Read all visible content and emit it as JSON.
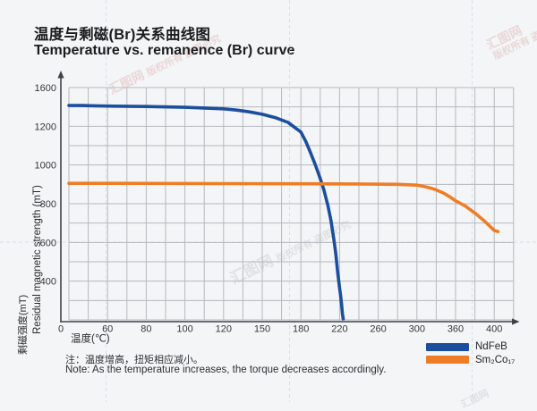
{
  "title": {
    "zh": "温度与剩磁(Br)关系曲线图",
    "en": "Temperature vs. remanence (Br) curve"
  },
  "notes": {
    "zh": "注：温度增高，扭矩相应减小。",
    "en": "Note: As the temperature increases, the torque decreases accordingly."
  },
  "watermark": {
    "brand": "汇图网",
    "notice": "版权所有 盗图必究"
  },
  "chart_data": {
    "type": "line",
    "title": "温度与剩磁(Br)关系曲线图 / Temperature vs. remanence (Br) curve",
    "xlabel": "温度(℃)",
    "ylabel_zh": "剩磁强度(mT)",
    "ylabel_en": "Residual magnetic strength (mT)",
    "x_ticks": [
      0,
      60,
      80,
      100,
      120,
      150,
      180,
      220,
      260,
      300,
      360,
      400
    ],
    "y_ticks": [
      1600,
      1200,
      1000,
      800,
      600,
      400,
      0
    ],
    "axis_note": "ticks are evenly spaced despite non-uniform values; one unlabeled minor gridline between each pair of ticks",
    "grid": true,
    "legend_position": "bottom-right",
    "colors": {
      "grid": "#b5b9be",
      "axis": "#3f4348",
      "tick_text": "#34373b"
    },
    "series": [
      {
        "name": "NdFeB",
        "display": "NdFeB",
        "color": "#1b4f9e",
        "points": [
          [
            0,
            1415
          ],
          [
            20,
            1414
          ],
          [
            40,
            1412
          ],
          [
            60,
            1409
          ],
          [
            80,
            1404
          ],
          [
            100,
            1396
          ],
          [
            110,
            1389
          ],
          [
            120,
            1380
          ],
          [
            130,
            1367
          ],
          [
            140,
            1349
          ],
          [
            150,
            1324
          ],
          [
            160,
            1290
          ],
          [
            170,
            1240
          ],
          [
            180,
            1170
          ],
          [
            185,
            1122
          ],
          [
            190,
            1063
          ],
          [
            195,
            1000
          ],
          [
            200,
            930
          ],
          [
            204,
            868
          ],
          [
            208,
            790
          ],
          [
            211,
            715
          ],
          [
            214,
            620
          ],
          [
            216,
            545
          ],
          [
            218,
            450
          ],
          [
            220,
            330
          ],
          [
            221,
            255
          ],
          [
            222,
            165
          ],
          [
            223,
            60
          ],
          [
            223.8,
            10
          ]
        ]
      },
      {
        "name": "Sm2Co17",
        "display": "Sm₂Co₁₇",
        "color": "#ee7d26",
        "points": [
          [
            0,
            905
          ],
          [
            60,
            905
          ],
          [
            120,
            904
          ],
          [
            180,
            903
          ],
          [
            240,
            902
          ],
          [
            280,
            900
          ],
          [
            300,
            896
          ],
          [
            310,
            890
          ],
          [
            320,
            882
          ],
          [
            330,
            871
          ],
          [
            340,
            857
          ],
          [
            350,
            838
          ],
          [
            360,
            815
          ],
          [
            370,
            788
          ],
          [
            380,
            752
          ],
          [
            390,
            710
          ],
          [
            400,
            662
          ],
          [
            404,
            656
          ]
        ]
      }
    ]
  }
}
